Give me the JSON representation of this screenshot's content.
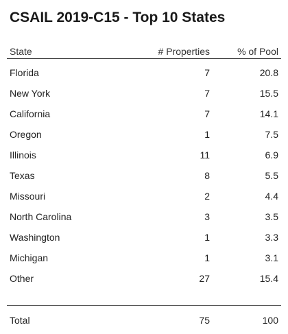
{
  "title": "CSAIL 2019-C15 - Top 10 States",
  "chart_data": {
    "type": "table",
    "columns": [
      "State",
      "# Properties",
      "% of Pool"
    ],
    "rows": [
      {
        "state": "Florida",
        "properties": "7",
        "pool": "20.8"
      },
      {
        "state": "New York",
        "properties": "7",
        "pool": "15.5"
      },
      {
        "state": "California",
        "properties": "7",
        "pool": "14.1"
      },
      {
        "state": "Oregon",
        "properties": "1",
        "pool": "7.5"
      },
      {
        "state": "Illinois",
        "properties": "11",
        "pool": "6.9"
      },
      {
        "state": "Texas",
        "properties": "8",
        "pool": "5.5"
      },
      {
        "state": "Missouri",
        "properties": "2",
        "pool": "4.4"
      },
      {
        "state": "North Carolina",
        "properties": "3",
        "pool": "3.5"
      },
      {
        "state": "Washington",
        "properties": "1",
        "pool": "3.3"
      },
      {
        "state": "Michigan",
        "properties": "1",
        "pool": "3.1"
      },
      {
        "state": "Other",
        "properties": "27",
        "pool": "15.4"
      }
    ],
    "total": {
      "state": "Total",
      "properties": "75",
      "pool": "100"
    }
  }
}
